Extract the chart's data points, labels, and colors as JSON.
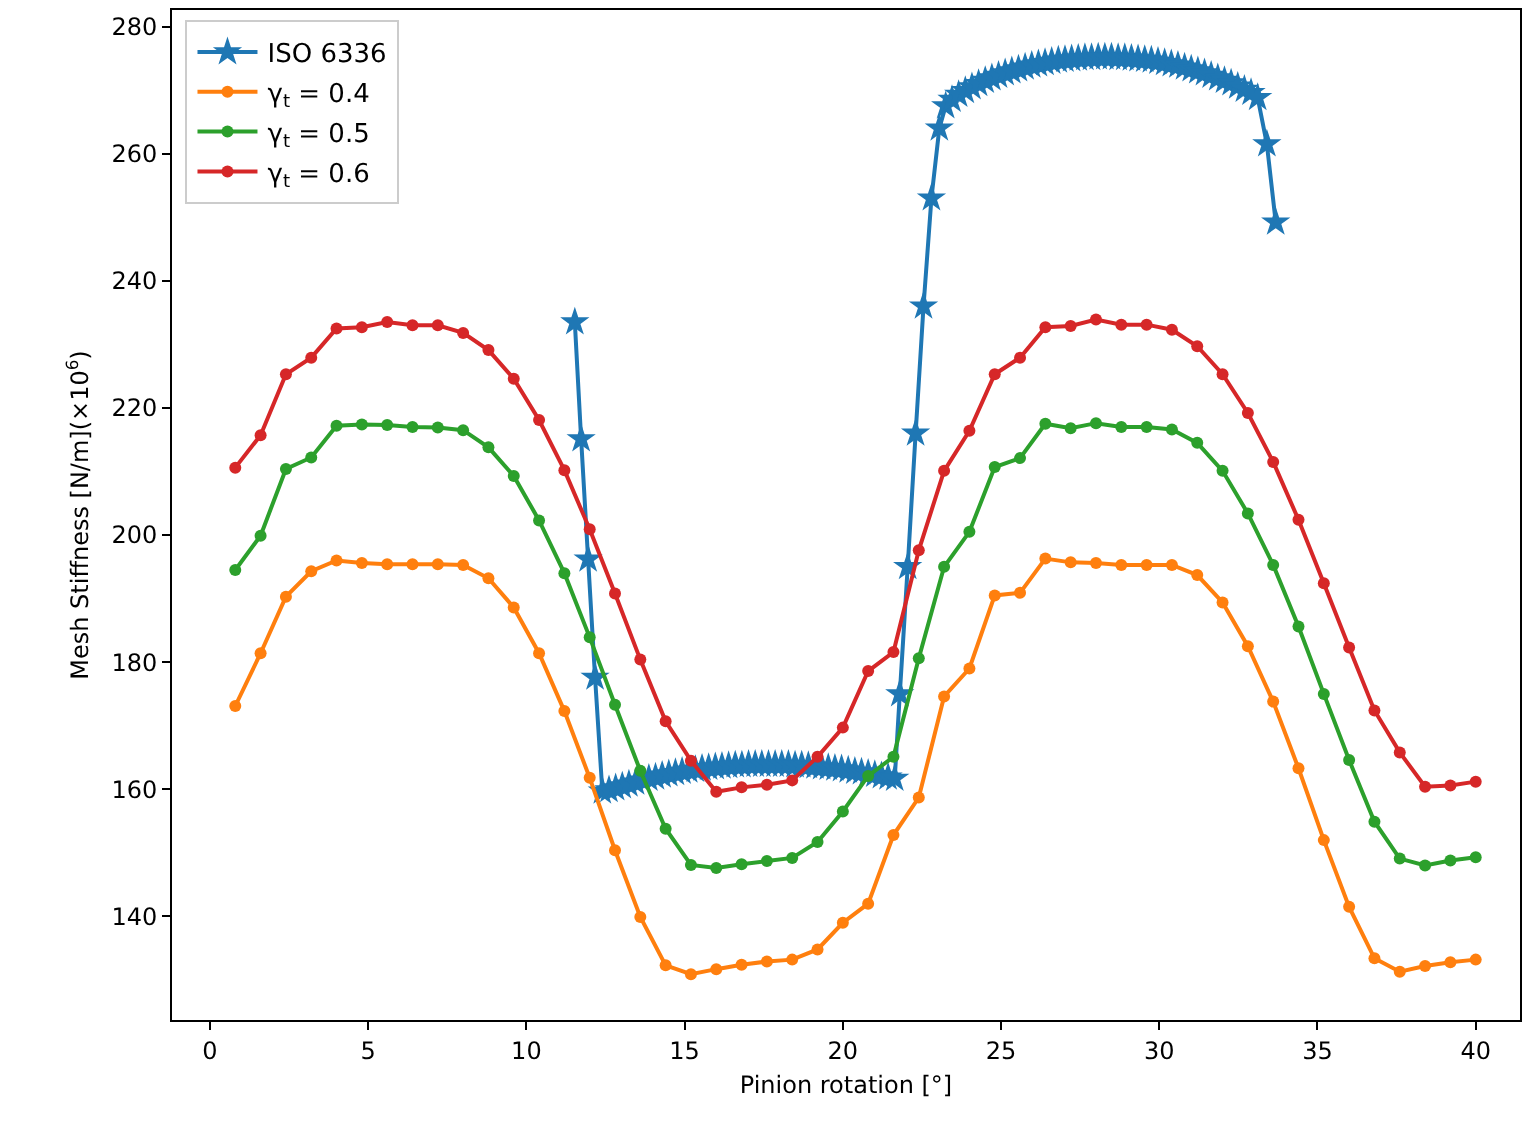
{
  "chart_data": {
    "type": "line",
    "xlabel": "Pinion rotation [°]",
    "ylabel": "Mesh Stiffness [N/m](×10$^{6}$)",
    "xlim": [
      -1.2,
      41.4
    ],
    "ylim": [
      123.7,
      282.6
    ],
    "xticks": [
      0,
      5,
      10,
      15,
      20,
      25,
      30,
      35,
      40
    ],
    "yticks": [
      140,
      160,
      180,
      200,
      220,
      240,
      260,
      280
    ],
    "grid": false,
    "legend": "top left",
    "x": [
      0.8,
      1.6,
      2.4,
      3.2,
      4.0,
      4.8,
      5.6,
      6.4,
      7.2,
      8.0,
      8.8,
      9.6,
      10.4,
      11.2,
      12.0,
      12.8,
      13.6,
      14.4,
      15.2,
      16.0,
      16.8,
      17.6,
      18.4,
      19.2,
      20.0,
      20.8,
      21.6,
      22.4,
      23.2,
      24.0,
      24.8,
      25.6,
      26.4,
      27.2,
      28.0,
      28.8,
      29.6,
      30.4,
      31.2,
      32.0,
      32.8,
      33.6,
      34.4,
      35.2,
      36.0,
      36.8,
      37.6,
      38.4,
      39.2,
      40.0
    ],
    "series": [
      {
        "name": "ISO 6336",
        "color": "#1f77b4",
        "marker": "star",
        "x": [
          11.53,
          11.73,
          11.95,
          12.17,
          12.4,
          12.61,
          12.82,
          13.03,
          13.24,
          13.45,
          13.66,
          13.87,
          14.08,
          14.29,
          14.5,
          14.71,
          14.92,
          15.13,
          15.34,
          15.55,
          15.76,
          15.97,
          16.18,
          16.39,
          16.6,
          16.81,
          17.02,
          17.23,
          17.44,
          17.65,
          17.86,
          18.07,
          18.28,
          18.49,
          18.7,
          18.91,
          19.12,
          19.33,
          19.54,
          19.75,
          19.96,
          20.17,
          20.38,
          20.59,
          20.8,
          21.01,
          21.22,
          21.43,
          21.64,
          21.8,
          22.05,
          22.3,
          22.55,
          22.8,
          23.05,
          23.25,
          23.45,
          23.66,
          23.87,
          24.08,
          24.29,
          24.5,
          24.71,
          24.92,
          25.13,
          25.34,
          25.55,
          25.76,
          25.97,
          26.18,
          26.39,
          26.6,
          26.81,
          27.02,
          27.23,
          27.44,
          27.65,
          27.86,
          28.07,
          28.28,
          28.49,
          28.7,
          28.91,
          29.12,
          29.33,
          29.54,
          29.75,
          29.96,
          30.17,
          30.38,
          30.59,
          30.8,
          31.01,
          31.22,
          31.43,
          31.64,
          31.85,
          32.06,
          32.27,
          32.48,
          32.69,
          32.9,
          33.11,
          33.4,
          33.68
        ],
        "values": [
          233.5,
          215.1,
          196.2,
          177.6,
          159.7,
          159.9,
          160.2,
          160.5,
          160.8,
          161.1,
          161.4,
          161.7,
          161.9,
          162.2,
          162.4,
          162.6,
          162.8,
          163.0,
          163.1,
          163.3,
          163.4,
          163.5,
          163.6,
          163.7,
          163.8,
          163.8,
          163.9,
          163.9,
          163.9,
          163.9,
          163.9,
          163.9,
          163.9,
          163.8,
          163.8,
          163.7,
          163.6,
          163.5,
          163.4,
          163.3,
          163.2,
          163.0,
          162.8,
          162.7,
          162.5,
          162.3,
          162.1,
          161.9,
          161.7,
          175,
          195,
          216,
          236,
          253,
          264,
          267.5,
          268.5,
          269.3,
          269.9,
          270.5,
          271.0,
          271.5,
          271.9,
          272.3,
          272.7,
          273.0,
          273.3,
          273.6,
          273.9,
          274.1,
          274.3,
          274.5,
          274.7,
          274.8,
          274.9,
          275.0,
          275.1,
          275.1,
          275.2,
          275.2,
          275.2,
          275.1,
          275.1,
          275.0,
          274.9,
          274.8,
          274.7,
          274.5,
          274.3,
          274.1,
          273.9,
          273.6,
          273.3,
          273.0,
          272.7,
          272.3,
          271.9,
          271.5,
          271.1,
          270.6,
          270.1,
          269.6,
          268.8,
          261.5,
          249.2
        ]
      },
      {
        "name": "γ$_{t}$ = 0.4",
        "color": "#ff7f0e",
        "marker": "circle",
        "values": [
          173.1,
          181.4,
          190.3,
          194.3,
          196.0,
          195.6,
          195.4,
          195.4,
          195.4,
          195.3,
          193.2,
          188.6,
          181.4,
          172.3,
          161.8,
          150.4,
          139.9,
          132.3,
          130.9,
          131.7,
          132.4,
          132.9,
          133.2,
          134.8,
          139.0,
          142.0,
          152.8,
          158.7,
          174.6,
          179.0,
          190.5,
          190.9,
          196.3,
          195.7,
          195.6,
          195.3,
          195.3,
          195.3,
          193.7,
          189.4,
          182.5,
          173.8,
          163.3,
          152.0,
          141.5,
          133.4,
          131.3,
          132.2,
          132.8,
          133.2
        ]
      },
      {
        "name": "γ$_{t}$ = 0.5",
        "color": "#2ca02c",
        "marker": "circle",
        "values": [
          194.5,
          199.9,
          210.4,
          212.2,
          217.2,
          217.4,
          217.3,
          217.0,
          216.9,
          216.5,
          213.8,
          209.3,
          202.3,
          194.0,
          183.9,
          173.3,
          162.9,
          153.8,
          148.1,
          147.6,
          148.2,
          148.7,
          149.2,
          151.7,
          156.5,
          162.1,
          165.1,
          180.6,
          195.0,
          200.5,
          210.7,
          212.1,
          217.5,
          216.8,
          217.6,
          217.0,
          217.0,
          216.6,
          214.5,
          210.1,
          203.4,
          195.3,
          185.6,
          175.0,
          164.6,
          154.9,
          149.1,
          148.0,
          148.8,
          149.3
        ]
      },
      {
        "name": "γ$_{t}$ = 0.6",
        "color": "#d62728",
        "marker": "circle",
        "values": [
          210.6,
          215.7,
          225.3,
          227.9,
          232.5,
          232.7,
          233.5,
          233.0,
          233.0,
          231.8,
          229.1,
          224.6,
          218.1,
          210.2,
          200.9,
          190.8,
          180.4,
          170.7,
          164.5,
          159.6,
          160.3,
          160.7,
          161.4,
          165.1,
          169.7,
          178.6,
          181.6,
          197.6,
          210.1,
          216.4,
          225.3,
          227.9,
          232.7,
          232.9,
          233.9,
          233.1,
          233.1,
          232.3,
          229.7,
          225.3,
          219.2,
          211.5,
          202.4,
          192.4,
          182.3,
          172.4,
          165.8,
          160.4,
          160.6,
          161.2
        ]
      }
    ]
  }
}
